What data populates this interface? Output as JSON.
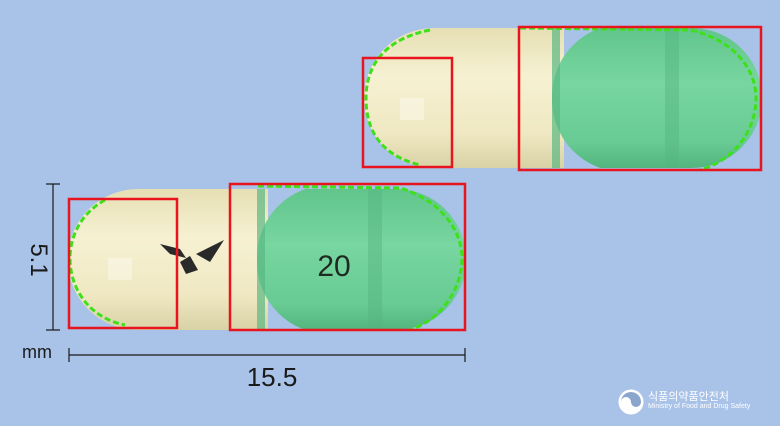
{
  "capsule_front": {
    "imprint": "20",
    "cap_color": "#6fcf97",
    "body_color": "#f3edc8"
  },
  "capsule_back": {
    "cap_color": "#6fcf97",
    "body_color": "#f3edc8"
  },
  "dimensions": {
    "width": "15.5",
    "height": "5.1",
    "unit": "mm"
  },
  "colors": {
    "background": "#a8c2e8",
    "box": "#e8141e",
    "edge": "#3ee01a"
  },
  "logo": {
    "name_kr": "식품의약품안전처",
    "name_en": "Ministry of Food and Drug Safety"
  }
}
